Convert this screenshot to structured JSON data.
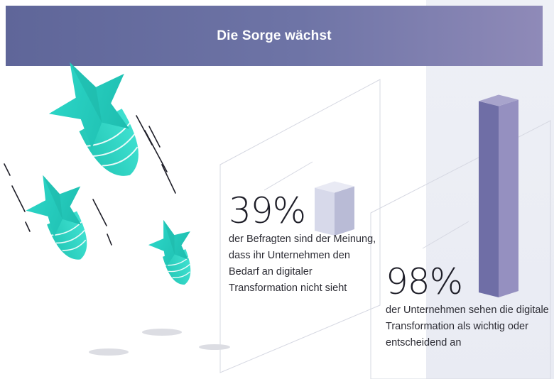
{
  "header": {
    "title": "Die Sorge wächst"
  },
  "chart_data": {
    "type": "bar",
    "title": "Die Sorge wächst",
    "categories": [
      "der Befragten sind der Meinung, dass ihr Unternehmen den Bedarf an digitaler Transformation nicht sieht",
      "der Unternehmen sehen die digitale Transformation als wichtig oder entscheidend an"
    ],
    "values": [
      39,
      98
    ],
    "value_labels": [
      "39%",
      "98%"
    ],
    "unit": "%",
    "ylim": [
      0,
      100
    ],
    "grid": false,
    "colors": [
      "#c9cbe0",
      "#7f7cb0"
    ]
  },
  "colors": {
    "banner_start": "#5f6699",
    "banner_end": "#8f8ab8",
    "bomb_teal": "#2fd6c6",
    "bar_light": "#c9cbe0",
    "bar_dark": "#7f7cb0"
  }
}
